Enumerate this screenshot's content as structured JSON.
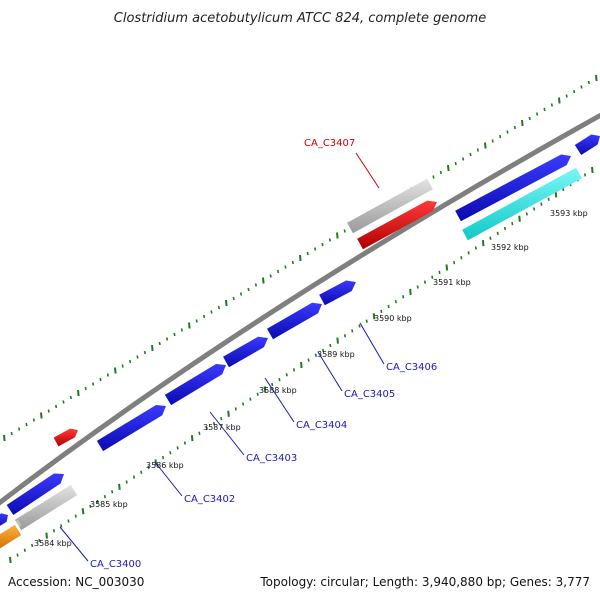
{
  "title": "Clostridium acetobutylicum ATCC 824, complete genome",
  "footer": {
    "accession": "Accession: NC_003030",
    "summary": "Topology: circular; Length: 3,940,880 bp; Genes: 3,777"
  },
  "colors": {
    "backbone": "#7f7f7f",
    "dots": "#1f7a1f",
    "gene_blue": "#1414d2",
    "gene_grey": "#bdbdbd",
    "gene_red": "#e60000",
    "gene_cyan": "#19e6e6",
    "gene_orange": "#f08c00",
    "label_blue": "#1a1ab4",
    "label_red": "#d00000"
  },
  "scale_ticks": [
    "3584 kbp",
    "3585 kbp",
    "3586 kbp",
    "3587 kbp",
    "3588 kbp",
    "3589 kbp",
    "3590 kbp",
    "3591 kbp",
    "3592 kbp",
    "3593 kbp"
  ],
  "gene_labels": [
    {
      "text": "CA_C3400",
      "color": "label_blue"
    },
    {
      "text": "CA_C3402",
      "color": "label_blue"
    },
    {
      "text": "CA_C3403",
      "color": "label_blue"
    },
    {
      "text": "CA_C3404",
      "color": "label_blue"
    },
    {
      "text": "CA_C3405",
      "color": "label_blue"
    },
    {
      "text": "CA_C3406",
      "color": "label_blue"
    },
    {
      "text": "CA_C3407",
      "color": "label_red"
    }
  ]
}
